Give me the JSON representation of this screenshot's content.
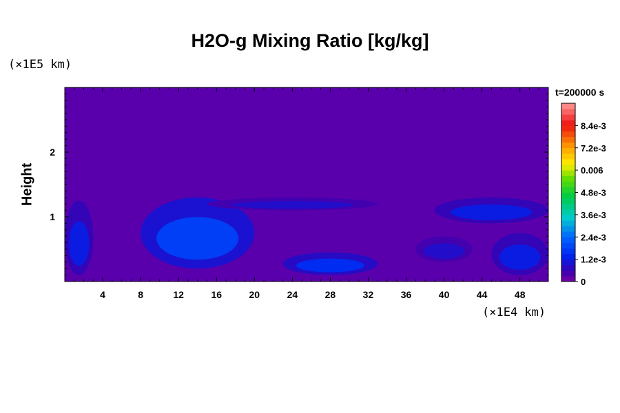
{
  "chart_data": {
    "type": "heatmap",
    "title": "H2O-g Mixing Ratio [kg/kg]",
    "xlabel": "",
    "ylabel": "Height",
    "x_unit": "(×1E4 km)",
    "y_unit": "(×1E5 km)",
    "time_label": "t=200000 s",
    "xlim": [
      0,
      51
    ],
    "ylim": [
      0,
      3
    ],
    "x_ticks": [
      4,
      8,
      12,
      16,
      20,
      24,
      28,
      32,
      36,
      40,
      44,
      48
    ],
    "y_ticks": [
      1,
      2
    ],
    "x_tick_labels": [
      "4",
      "8",
      "12",
      "16",
      "20",
      "24",
      "28",
      "32",
      "36",
      "40",
      "44",
      "48"
    ],
    "y_tick_labels": [
      "1",
      "2"
    ],
    "colorbar": {
      "min": 0,
      "max": 0.0096,
      "ticks": [
        0,
        0.0012,
        0.0024,
        0.0036,
        0.0048,
        0.006,
        0.0072,
        0.0084
      ],
      "tick_labels": [
        "0",
        "1.2e-3",
        "2.4e-3",
        "3.6e-3",
        "4.8e-3",
        "0.006",
        "7.2e-3",
        "8.4e-3"
      ]
    },
    "background_value": 0.0003,
    "structures": [
      {
        "name": "left-edge-swirl",
        "value": 0.0012,
        "x_range": [
          0,
          3
        ],
        "y_range": [
          0.1,
          1.25
        ]
      },
      {
        "name": "large-eddy-center",
        "value": 0.0018,
        "x_range": [
          8,
          20
        ],
        "y_range": [
          0.2,
          1.3
        ]
      },
      {
        "name": "filament-band-top",
        "value": 0.0009,
        "x_range": [
          15,
          33
        ],
        "y_range": [
          1.1,
          1.3
        ]
      },
      {
        "name": "lower-tongue",
        "value": 0.0015,
        "x_range": [
          23,
          33
        ],
        "y_range": [
          0.1,
          0.45
        ]
      },
      {
        "name": "right-vortex",
        "value": 0.0009,
        "x_range": [
          37,
          43
        ],
        "y_range": [
          0.3,
          0.7
        ]
      },
      {
        "name": "upper-right-tongue",
        "value": 0.0012,
        "x_range": [
          39,
          51
        ],
        "y_range": [
          0.9,
          1.3
        ]
      },
      {
        "name": "lower-right-eddy",
        "value": 0.0012,
        "x_range": [
          45,
          51
        ],
        "y_range": [
          0.1,
          0.75
        ]
      }
    ]
  }
}
